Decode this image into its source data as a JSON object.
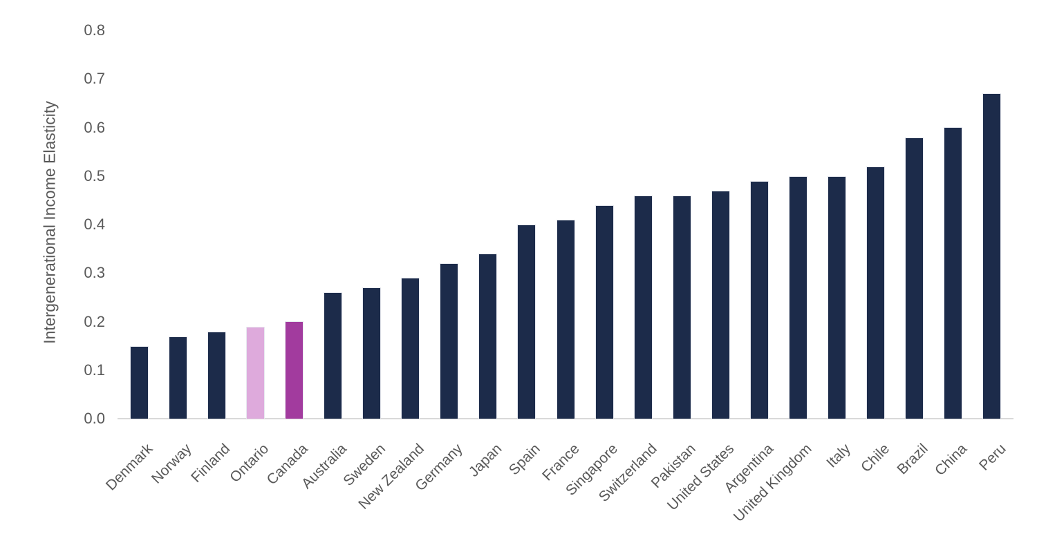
{
  "chart_data": {
    "type": "bar",
    "title": "",
    "xlabel": "",
    "ylabel": "Intergenerational Income Elasticity",
    "ylim": [
      0.0,
      0.8
    ],
    "ytick_labels": [
      "0.0",
      "0.1",
      "0.2",
      "0.3",
      "0.4",
      "0.5",
      "0.6",
      "0.7",
      "0.8"
    ],
    "grid": false,
    "legend_position": "none",
    "x_label_rotation_degrees": 45,
    "categories": [
      "Denmark",
      "Norway",
      "Finland",
      "Ontario",
      "Canada",
      "Australia",
      "Sweden",
      "New Zealand",
      "Germany",
      "Japan",
      "Spain",
      "France",
      "Singapore",
      "Switzerland",
      "Pakistan",
      "United States",
      "Argentina",
      "United Kingdom",
      "Italy",
      "Chile",
      "Brazil",
      "China",
      "Peru"
    ],
    "values": [
      0.15,
      0.17,
      0.18,
      0.19,
      0.2,
      0.26,
      0.27,
      0.29,
      0.32,
      0.34,
      0.4,
      0.41,
      0.44,
      0.46,
      0.46,
      0.47,
      0.49,
      0.5,
      0.5,
      0.52,
      0.58,
      0.6,
      0.67
    ],
    "highlighted_bars": [
      {
        "category": "Ontario",
        "color": "#DEAADC"
      },
      {
        "category": "Canada",
        "color": "#A23B9E"
      }
    ],
    "colors": {
      "bar_default": "#1C2B4A",
      "bar_ontario": "#DEAADC",
      "bar_canada": "#A23B9E",
      "axis_line": "#D9D9D9",
      "label_text": "#595959"
    }
  }
}
